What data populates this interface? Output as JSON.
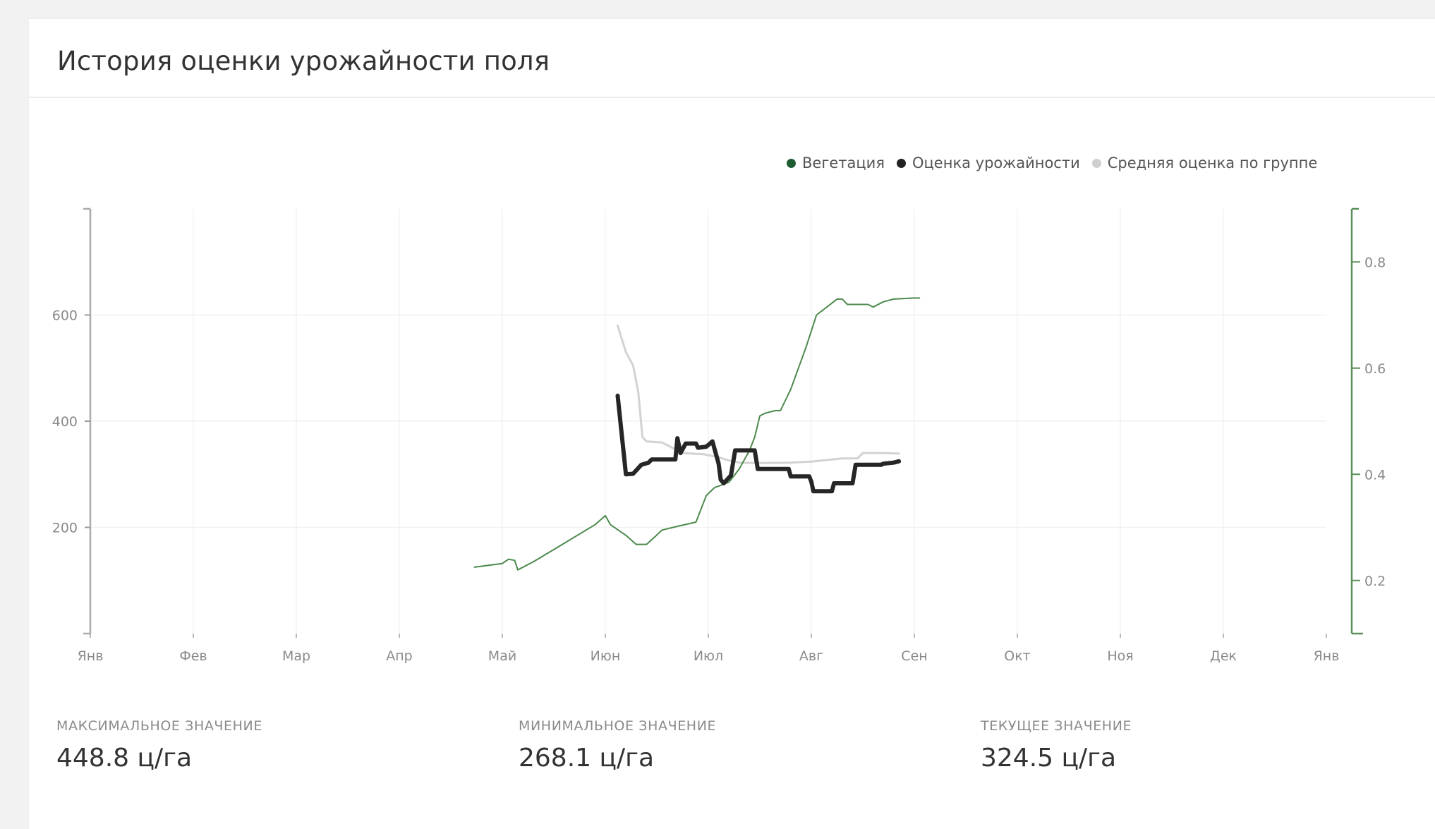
{
  "card": {
    "title": "История оценки урожайности поля"
  },
  "legend": [
    {
      "label": "Вегетация",
      "color": "#1e5c32"
    },
    {
      "label": "Оценка урожайности",
      "color": "#222222"
    },
    {
      "label": "Средняя оценка по группе",
      "color": "#cfcfcf"
    }
  ],
  "stats": [
    {
      "label": "МАКСИМАЛЬНОЕ ЗНАЧЕНИЕ",
      "value": "448.8 ц/га"
    },
    {
      "label": "МИНИМАЛЬНОЕ ЗНАЧЕНИЕ",
      "value": "268.1 ц/га"
    },
    {
      "label": "ТЕКУЩЕЕ ЗНАЧЕНИЕ",
      "value": "324.5 ц/га"
    }
  ],
  "chart_data": {
    "type": "line",
    "x_axis": {
      "type": "month",
      "tick_labels": [
        "Янв",
        "Фев",
        "Мар",
        "Апр",
        "Май",
        "Июн",
        "Июл",
        "Авг",
        "Сен",
        "Окт",
        "Ноя",
        "Дек",
        "Янв"
      ],
      "range_months": [
        0,
        12
      ]
    },
    "y_axis_left": {
      "ticks": [
        200,
        400,
        600
      ],
      "range": [
        0,
        800
      ]
    },
    "y_axis_right": {
      "ticks": [
        0.2,
        0.4,
        0.6,
        0.8
      ],
      "range": [
        0.1,
        0.9
      ],
      "color": "#5a8f5a"
    },
    "grid": true,
    "legend_position": "top-right",
    "series": [
      {
        "name": "Вегетация",
        "axis": "right",
        "color": "#4d8a4d",
        "points": [
          [
            3.73,
            0.225
          ],
          [
            3.92,
            0.23
          ],
          [
            4.0,
            0.232
          ],
          [
            4.06,
            0.24
          ],
          [
            4.12,
            0.238
          ],
          [
            4.15,
            0.22
          ],
          [
            4.3,
            0.235
          ],
          [
            4.6,
            0.27
          ],
          [
            4.9,
            0.305
          ],
          [
            5.0,
            0.322
          ],
          [
            5.05,
            0.305
          ],
          [
            5.2,
            0.285
          ],
          [
            5.3,
            0.268
          ],
          [
            5.4,
            0.268
          ],
          [
            5.48,
            0.282
          ],
          [
            5.55,
            0.295
          ],
          [
            5.7,
            0.302
          ],
          [
            5.88,
            0.31
          ],
          [
            5.98,
            0.36
          ],
          [
            6.06,
            0.375
          ],
          [
            6.2,
            0.385
          ],
          [
            6.3,
            0.41
          ],
          [
            6.4,
            0.445
          ],
          [
            6.45,
            0.47
          ],
          [
            6.5,
            0.51
          ],
          [
            6.55,
            0.515
          ],
          [
            6.65,
            0.52
          ],
          [
            6.7,
            0.52
          ],
          [
            6.8,
            0.56
          ],
          [
            6.95,
            0.64
          ],
          [
            7.05,
            0.7
          ],
          [
            7.25,
            0.73
          ],
          [
            7.3,
            0.73
          ],
          [
            7.35,
            0.72
          ],
          [
            7.55,
            0.72
          ],
          [
            7.6,
            0.715
          ],
          [
            7.7,
            0.725
          ],
          [
            7.8,
            0.73
          ],
          [
            8.0,
            0.732
          ],
          [
            8.05,
            0.732
          ]
        ]
      },
      {
        "name": "Оценка урожайности",
        "axis": "left",
        "color": "#262626",
        "points": [
          [
            5.12,
            448
          ],
          [
            5.2,
            300
          ],
          [
            5.27,
            301
          ],
          [
            5.35,
            318
          ],
          [
            5.42,
            322
          ],
          [
            5.45,
            328
          ],
          [
            5.68,
            328
          ],
          [
            5.7,
            368
          ],
          [
            5.73,
            340
          ],
          [
            5.78,
            358
          ],
          [
            5.88,
            358
          ],
          [
            5.9,
            350
          ],
          [
            5.98,
            352
          ],
          [
            6.04,
            362
          ],
          [
            6.1,
            320
          ],
          [
            6.12,
            290
          ],
          [
            6.15,
            283
          ],
          [
            6.22,
            298
          ],
          [
            6.26,
            345
          ],
          [
            6.45,
            345
          ],
          [
            6.48,
            310
          ],
          [
            6.78,
            310
          ],
          [
            6.8,
            296
          ],
          [
            6.98,
            296
          ],
          [
            7.0,
            286
          ],
          [
            7.02,
            268
          ],
          [
            7.2,
            268
          ],
          [
            7.22,
            283
          ],
          [
            7.4,
            283
          ],
          [
            7.43,
            318
          ],
          [
            7.68,
            318
          ],
          [
            7.7,
            320
          ],
          [
            7.8,
            322
          ],
          [
            7.85,
            324.5
          ]
        ]
      },
      {
        "name": "Средняя оценка по группе",
        "axis": "left",
        "color": "#d2d2d2",
        "points": [
          [
            5.12,
            580
          ],
          [
            5.2,
            530
          ],
          [
            5.27,
            505
          ],
          [
            5.32,
            455
          ],
          [
            5.36,
            370
          ],
          [
            5.4,
            362
          ],
          [
            5.55,
            360
          ],
          [
            5.75,
            340
          ],
          [
            5.95,
            338
          ],
          [
            6.1,
            332
          ],
          [
            6.2,
            326
          ],
          [
            6.3,
            322
          ],
          [
            6.5,
            321
          ],
          [
            6.8,
            322
          ],
          [
            7.0,
            324
          ],
          [
            7.2,
            328
          ],
          [
            7.3,
            330
          ],
          [
            7.45,
            330
          ],
          [
            7.5,
            340
          ],
          [
            7.7,
            340
          ],
          [
            7.85,
            339
          ]
        ]
      }
    ]
  }
}
